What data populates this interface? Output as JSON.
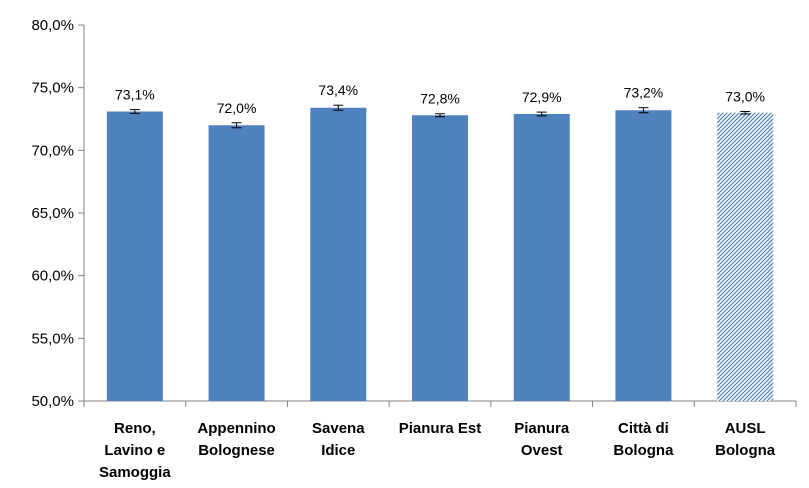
{
  "chart_data": {
    "type": "bar",
    "categories": [
      [
        "Reno,",
        "Lavino e",
        "Samoggia"
      ],
      [
        "Appennino",
        "Bolognese"
      ],
      [
        "Savena",
        "Idice"
      ],
      [
        "Pianura Est"
      ],
      [
        "Pianura",
        "Ovest"
      ],
      [
        "Città di",
        "Bologna"
      ],
      [
        "AUSL",
        "Bologna"
      ]
    ],
    "values": [
      73.1,
      72.0,
      73.4,
      72.8,
      72.9,
      73.2,
      73.0
    ],
    "data_labels": [
      "73,1%",
      "72,0%",
      "73,4%",
      "72,8%",
      "72,9%",
      "73,2%",
      "73,0%"
    ],
    "error_margin": [
      0.15,
      0.2,
      0.2,
      0.12,
      0.15,
      0.2,
      0.1
    ],
    "ylim": [
      50,
      80
    ],
    "y_ticks": [
      50,
      55,
      60,
      65,
      70,
      75,
      80
    ],
    "y_tick_labels": [
      "50,0%",
      "55,0%",
      "60,0%",
      "65,0%",
      "70,0%",
      "75,0%",
      "80,0%"
    ],
    "title": "",
    "xlabel": "",
    "ylabel": "",
    "grid": false,
    "legend": "none",
    "colors": {
      "bar": "#4f81bd",
      "highlight_bar_pattern": "#b8cce4",
      "axis": "#808080"
    },
    "highlight_index": 6
  }
}
